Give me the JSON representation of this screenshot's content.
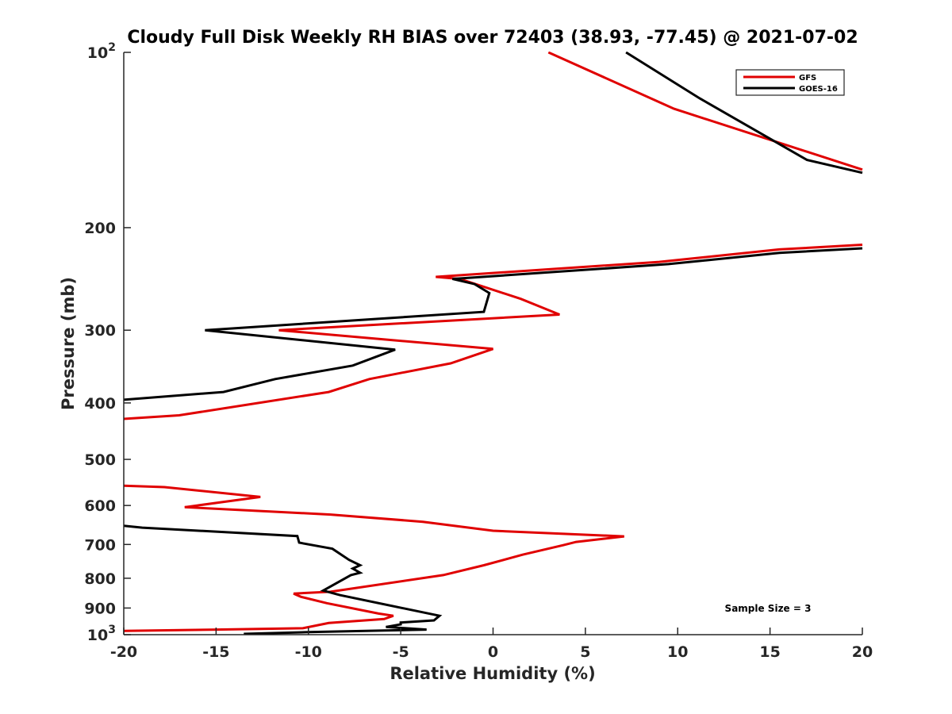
{
  "chart_data": {
    "type": "line",
    "title": "Cloudy Full Disk Weekly RH BIAS over 72403 (38.93, -77.45) @ 2021-07-02",
    "xlabel": "Relative Humidity (%)",
    "ylabel": "Pressure (mb)",
    "xlim": [
      -20,
      20
    ],
    "ylim": [
      100,
      1000
    ],
    "yscale": "log",
    "y_reversed": true,
    "xticks": [
      -20,
      -15,
      -10,
      -5,
      0,
      5,
      10,
      15,
      20
    ],
    "xtick_labels": [
      "-20",
      "-15",
      "-10",
      "-5",
      "0",
      "5",
      "10",
      "15",
      "20"
    ],
    "yticks": [
      {
        "value": 100,
        "base": "10",
        "exp": "2"
      },
      {
        "value": 200,
        "label": "200"
      },
      {
        "value": 300,
        "label": "300"
      },
      {
        "value": 400,
        "label": "400"
      },
      {
        "value": 500,
        "label": "500"
      },
      {
        "value": 600,
        "label": "600"
      },
      {
        "value": 700,
        "label": "700"
      },
      {
        "value": 800,
        "label": "800"
      },
      {
        "value": 900,
        "label": "900"
      },
      {
        "value": 1000,
        "base": "10",
        "exp": "3"
      }
    ],
    "grid": false,
    "legend_position": "top-right",
    "series": [
      {
        "name": "GFS",
        "color": "#e00000",
        "segments": [
          [
            [
              3.0,
              100
            ],
            [
              9.8,
              125
            ],
            [
              20.0,
              159
            ]
          ],
          [
            [
              20.0,
              214
            ],
            [
              15.5,
              218
            ],
            [
              9.0,
              229
            ],
            [
              -3.1,
              243
            ],
            [
              -1.8,
              245
            ],
            [
              1.5,
              265
            ],
            [
              3.6,
              282
            ],
            [
              -11.6,
              300
            ],
            [
              0.0,
              323
            ],
            [
              -2.3,
              342
            ],
            [
              -6.7,
              364
            ],
            [
              -8.9,
              383
            ],
            [
              -17.0,
              420
            ],
            [
              -20.0,
              426
            ]
          ],
          [
            [
              -20.0,
              555
            ],
            [
              -17.8,
              558
            ],
            [
              -12.6,
              580
            ],
            [
              -16.7,
              604
            ],
            [
              -8.8,
              622
            ],
            [
              -3.8,
              640
            ],
            [
              0.0,
              663
            ],
            [
              7.1,
              678
            ],
            [
              4.5,
              693
            ],
            [
              3.8,
              702
            ],
            [
              1.6,
              729
            ],
            [
              -0.5,
              760
            ],
            [
              -2.7,
              790
            ],
            [
              -8.8,
              844
            ],
            [
              -10.8,
              850
            ],
            [
              -10.4,
              861
            ],
            [
              -9.0,
              883
            ],
            [
              -6.2,
              920
            ],
            [
              -5.4,
              928
            ],
            [
              -5.9,
              940
            ],
            [
              -8.9,
              955
            ],
            [
              -10.3,
              975
            ],
            [
              -15.0,
              980
            ],
            [
              -20.0,
              985
            ]
          ]
        ]
      },
      {
        "name": "GOES-16",
        "color": "#000000",
        "segments": [
          [
            [
              7.2,
              100
            ],
            [
              11.2,
              120
            ],
            [
              17.0,
              153
            ],
            [
              20.0,
              161
            ]
          ],
          [
            [
              20.0,
              217
            ],
            [
              15.5,
              221
            ],
            [
              9.5,
              231
            ],
            [
              -2.2,
              245
            ],
            [
              -1.0,
              250
            ],
            [
              -0.2,
              259
            ],
            [
              -0.5,
              279
            ],
            [
              -15.6,
              300
            ],
            [
              -5.3,
              324
            ],
            [
              -7.6,
              345
            ],
            [
              -11.8,
              364
            ],
            [
              -14.6,
              383
            ],
            [
              -20.0,
              395
            ]
          ],
          [
            [
              -20.0,
              650
            ],
            [
              -19.0,
              655
            ],
            [
              -10.6,
              677
            ],
            [
              -10.5,
              695
            ],
            [
              -8.7,
              712
            ],
            [
              -7.8,
              744
            ],
            [
              -7.2,
              760
            ],
            [
              -7.6,
              770
            ],
            [
              -7.2,
              783
            ],
            [
              -7.7,
              790
            ],
            [
              -9.2,
              840
            ],
            [
              -8.3,
              855
            ],
            [
              -2.9,
              928
            ],
            [
              -3.2,
              945
            ],
            [
              -5.0,
              953
            ],
            [
              -5.0,
              960
            ],
            [
              -5.8,
              970
            ],
            [
              -3.6,
              980
            ],
            [
              -10.0,
              990
            ],
            [
              -13.5,
              997
            ]
          ]
        ]
      }
    ],
    "annotations": [
      "Sample Size = 3"
    ]
  }
}
